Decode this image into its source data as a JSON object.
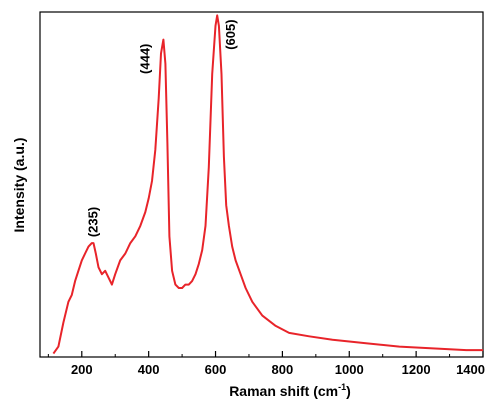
{
  "chart_data": {
    "type": "line",
    "xlabel": "Raman shift (cm",
    "xlabel_sup": "-1",
    "xlabel_end": ")",
    "ylabel": "Intensity (a.u.)",
    "xlim": [
      75,
      1400
    ],
    "ylim": [
      0,
      100
    ],
    "x_ticks": [
      {
        "value": 200,
        "label": "200"
      },
      {
        "value": 400,
        "label": "400"
      },
      {
        "value": 600,
        "label": "600"
      },
      {
        "value": 800,
        "label": "800"
      },
      {
        "value": 1000,
        "label": "1000"
      },
      {
        "value": 1200,
        "label": "1200"
      },
      {
        "value": 1400,
        "label": "1400"
      }
    ],
    "peak_labels": [
      {
        "x": 235,
        "text": "(235)"
      },
      {
        "x": 444,
        "text": "(444)"
      },
      {
        "x": 605,
        "text": "(605)"
      }
    ],
    "series": [
      {
        "color": "#e8242a",
        "x": [
          115,
          130,
          145,
          160,
          170,
          180,
          190,
          200,
          210,
          220,
          230,
          235,
          242,
          250,
          260,
          270,
          280,
          290,
          300,
          315,
          330,
          345,
          360,
          375,
          390,
          400,
          410,
          420,
          430,
          437,
          444,
          450,
          456,
          462,
          470,
          480,
          490,
          500,
          510,
          520,
          530,
          540,
          550,
          560,
          570,
          580,
          590,
          600,
          605,
          610,
          618,
          625,
          632,
          640,
          650,
          660,
          675,
          690,
          710,
          740,
          780,
          820,
          880,
          950,
          1050,
          1150,
          1250,
          1350,
          1400
        ],
        "y": [
          1,
          3,
          10,
          16,
          18,
          22,
          25,
          28,
          30,
          32,
          33,
          33,
          30,
          26,
          24,
          25,
          23,
          21,
          24,
          28,
          30,
          33,
          35,
          38,
          42,
          46,
          51,
          60,
          75,
          88,
          92,
          85,
          62,
          35,
          25,
          21,
          20,
          20,
          21,
          21,
          22,
          24,
          27,
          31,
          38,
          55,
          82,
          96,
          99,
          96,
          82,
          58,
          44,
          38,
          32,
          28,
          24,
          20,
          16,
          12,
          9,
          7,
          6,
          5,
          4,
          3,
          2.5,
          2,
          2
        ]
      }
    ]
  }
}
